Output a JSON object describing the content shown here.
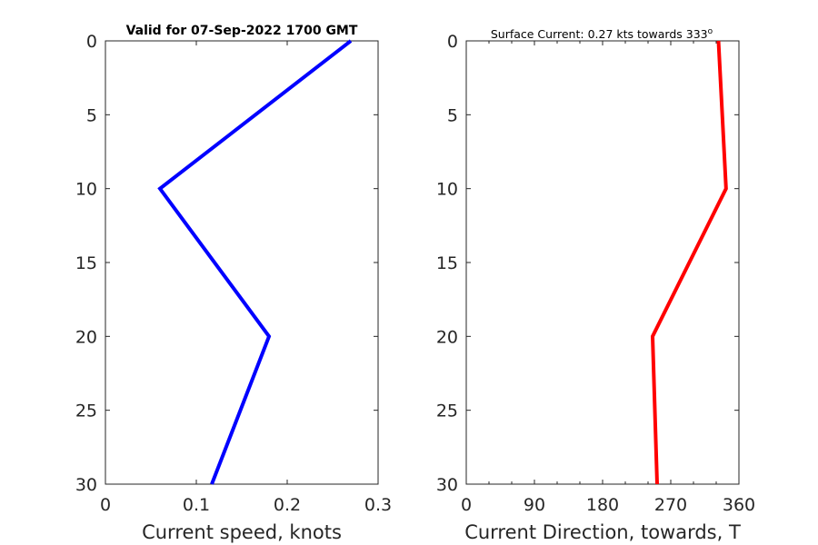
{
  "chart_data": [
    {
      "type": "line",
      "title": "Valid for 07-Sep-2022 1700 GMT",
      "xlabel": "Current speed, knots",
      "ylabel": "",
      "xlim": [
        0,
        0.3
      ],
      "ylim": [
        0,
        30
      ],
      "y_reversed": true,
      "xticks": [
        "0",
        "0.1",
        "0.2",
        "0.3"
      ],
      "yticks": [
        "0",
        "5",
        "10",
        "15",
        "20",
        "25",
        "30"
      ],
      "series": [
        {
          "color": "#0000ff",
          "x": [
            0.27,
            0.06,
            0.18,
            0.117
          ],
          "y": [
            0,
            10,
            20,
            30
          ]
        }
      ]
    },
    {
      "type": "line",
      "title": "Surface Current: 0.27 kts towards 333",
      "title_superscript": "o",
      "xlabel": "Current Direction, towards, T",
      "ylabel": "",
      "xlim": [
        0,
        360
      ],
      "ylim": [
        0,
        30
      ],
      "y_reversed": true,
      "xticks": [
        "0",
        "90",
        "180",
        "270",
        "360"
      ],
      "yticks": [
        "0",
        "5",
        "10",
        "15",
        "20",
        "25",
        "30"
      ],
      "series": [
        {
          "color": "#ff0000",
          "x": [
            333,
            343,
            246,
            252
          ],
          "y": [
            0,
            10,
            20,
            30
          ]
        }
      ]
    }
  ]
}
